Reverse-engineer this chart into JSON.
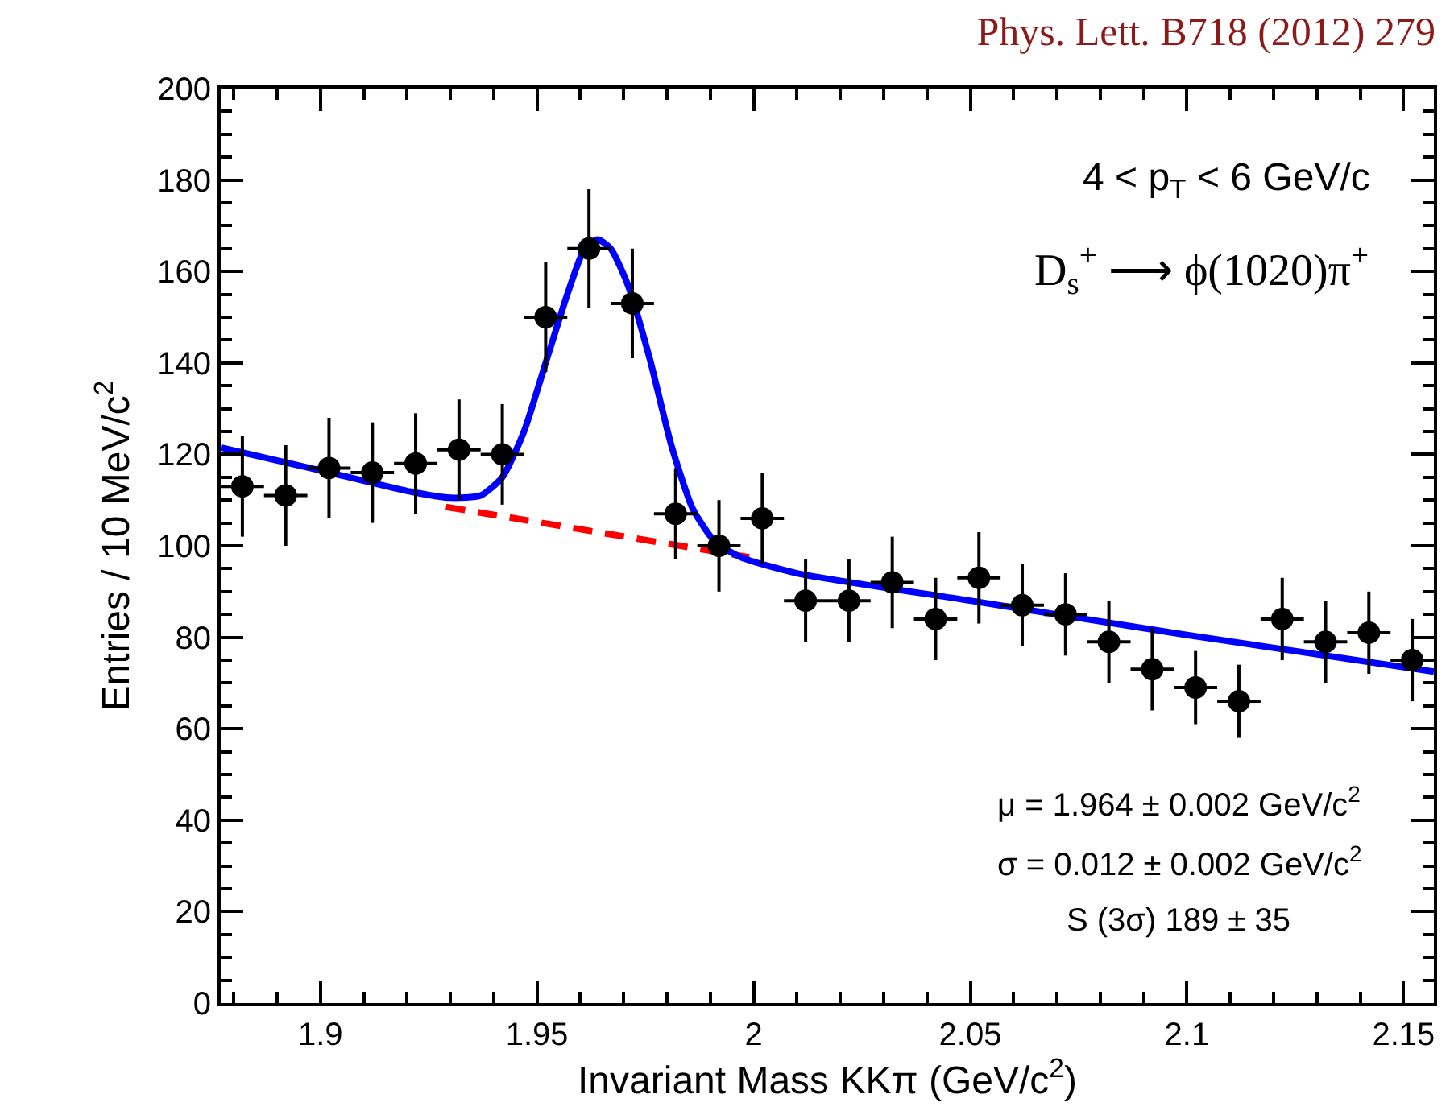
{
  "chart_data": {
    "type": "scatter",
    "title": "Phys. Lett. B718 (2012) 279",
    "xlabel": "Invariant Mass KKπ (GeV/c$^{2}$)",
    "ylabel": "Entries / 10 MeV/c$^{2}$",
    "annotations": [
      "4 < p$_{T}$ < 6 GeV/c",
      "D$_{s}$$^{+}$ ⟶ ϕ(1020)π$^{+}$",
      "μ = 1.964 ± 0.002 GeV/c$^{2}$",
      "σ = 0.012 ± 0.002 GeV/c$^{2}$",
      "S (3σ) 189 ± 35"
    ],
    "xlim": [
      1.877,
      2.157
    ],
    "xticks": [
      {
        "value": 1.9,
        "label": "1.9"
      },
      {
        "value": 1.95,
        "label": "1.95"
      },
      {
        "value": 2,
        "label": "2"
      },
      {
        "value": 2.05,
        "label": "2.05"
      },
      {
        "value": 2.1,
        "label": "2.1"
      },
      {
        "value": 2.15,
        "label": "2.15"
      }
    ],
    "ylim": [
      0,
      200
    ],
    "yticks": [
      0,
      20,
      40,
      60,
      80,
      100,
      120,
      140,
      160,
      180,
      200
    ],
    "series": [
      {
        "marker": "circle",
        "color": "#000000",
        "x": [
          1.882,
          1.892,
          1.902,
          1.912,
          1.922,
          1.932,
          1.942,
          1.952,
          1.962,
          1.972,
          1.982,
          1.992,
          2.002,
          2.012,
          2.022,
          2.032,
          2.042,
          2.052,
          2.062,
          2.072,
          2.082,
          2.092,
          2.102,
          2.112,
          2.122,
          2.132,
          2.142,
          2.152
        ],
        "values": [
          113,
          111,
          117,
          116,
          118,
          121,
          120,
          150,
          165,
          153,
          107,
          100,
          106,
          88,
          88,
          92,
          84,
          93,
          87,
          85,
          79,
          73,
          69,
          66,
          84,
          79,
          81,
          75
        ],
        "errors": [
          11,
          11,
          11,
          11,
          11,
          11,
          11,
          12,
          13,
          12,
          10,
          10,
          10,
          9,
          9,
          10,
          9,
          10,
          9,
          9,
          9,
          9,
          8,
          8,
          9,
          9,
          9,
          9
        ],
        "xerrors": [
          0.005,
          0.005,
          0.005,
          0.005,
          0.005,
          0.005,
          0.005,
          0.005,
          0.005,
          0.005,
          0.005,
          0.005,
          0.005,
          0.005,
          0.005,
          0.005,
          0.005,
          0.005,
          0.005,
          0.005,
          0.005,
          0.005,
          0.005,
          0.005,
          0.005,
          0.005,
          0.005,
          0.005
        ]
      },
      {
        "type": "line",
        "line_style": "dashed",
        "color": "#ff0000",
        "x": [
          1.929,
          1.999
        ],
        "values": [
          108.5,
          97.5
        ]
      },
      {
        "type": "line",
        "line_style": "solid",
        "color": "#0000ff",
        "x": [
          1.877,
          1.9,
          1.92,
          1.93,
          1.937,
          1.942,
          1.947,
          1.952,
          1.957,
          1.961,
          1.964,
          1.967,
          1.971,
          1.976,
          1.981,
          1.986,
          1.991,
          1.997,
          2.01,
          2.05,
          2.1,
          2.157
        ],
        "values": [
          121.5,
          116.5,
          112,
          110.5,
          111,
          115,
          125,
          140,
          155,
          165,
          167,
          165,
          157,
          141,
          122,
          108,
          101,
          97.5,
          94,
          88,
          80.5,
          72.5
        ]
      }
    ]
  }
}
